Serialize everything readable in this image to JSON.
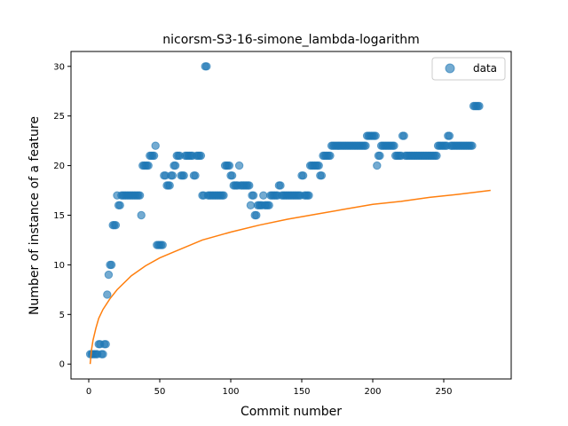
{
  "chart_data": {
    "type": "scatter",
    "title": "nicorsm-S3-16-simone_lambda-logarithm",
    "xlabel": "Commit number",
    "ylabel": "Number of instance of a feature",
    "xlim": [
      -12.5,
      297.5
    ],
    "ylim": [
      -1.5,
      31.5
    ],
    "xticks": [
      0,
      50,
      100,
      150,
      200,
      250
    ],
    "yticks": [
      0,
      5,
      10,
      15,
      20,
      25,
      30
    ],
    "grid": false,
    "legend": {
      "position": "top-right",
      "entries": [
        "data"
      ]
    },
    "colors": {
      "data": "#1f77b4",
      "fit": "#ff7f0e"
    },
    "series": [
      {
        "name": "data",
        "kind": "scatter",
        "points": [
          [
            1,
            1
          ],
          [
            2,
            1
          ],
          [
            3,
            1
          ],
          [
            4,
            1
          ],
          [
            5,
            1
          ],
          [
            6,
            1
          ],
          [
            7,
            2
          ],
          [
            8,
            2
          ],
          [
            9,
            1
          ],
          [
            10,
            1
          ],
          [
            11,
            2
          ],
          [
            12,
            2
          ],
          [
            13,
            7
          ],
          [
            14,
            9
          ],
          [
            15,
            10
          ],
          [
            16,
            10
          ],
          [
            17,
            14
          ],
          [
            18,
            14
          ],
          [
            19,
            14
          ],
          [
            20,
            17
          ],
          [
            21,
            16
          ],
          [
            22,
            16
          ],
          [
            23,
            17
          ],
          [
            24,
            17
          ],
          [
            25,
            17
          ],
          [
            26,
            17
          ],
          [
            27,
            17
          ],
          [
            28,
            17
          ],
          [
            29,
            17
          ],
          [
            30,
            17
          ],
          [
            31,
            17
          ],
          [
            32,
            17
          ],
          [
            33,
            17
          ],
          [
            34,
            17
          ],
          [
            35,
            17
          ],
          [
            36,
            17
          ],
          [
            37,
            15
          ],
          [
            38,
            20
          ],
          [
            39,
            20
          ],
          [
            40,
            20
          ],
          [
            41,
            20
          ],
          [
            42,
            20
          ],
          [
            43,
            21
          ],
          [
            44,
            21
          ],
          [
            45,
            21
          ],
          [
            46,
            21
          ],
          [
            47,
            22
          ],
          [
            48,
            12
          ],
          [
            49,
            12
          ],
          [
            50,
            12
          ],
          [
            51,
            12
          ],
          [
            52,
            12
          ],
          [
            53,
            19
          ],
          [
            54,
            19
          ],
          [
            55,
            18
          ],
          [
            56,
            18
          ],
          [
            57,
            18
          ],
          [
            58,
            19
          ],
          [
            59,
            19
          ],
          [
            60,
            20
          ],
          [
            61,
            20
          ],
          [
            62,
            21
          ],
          [
            63,
            21
          ],
          [
            64,
            21
          ],
          [
            65,
            19
          ],
          [
            66,
            19
          ],
          [
            67,
            19
          ],
          [
            68,
            21
          ],
          [
            69,
            21
          ],
          [
            70,
            21
          ],
          [
            71,
            21
          ],
          [
            72,
            21
          ],
          [
            73,
            21
          ],
          [
            74,
            19
          ],
          [
            75,
            19
          ],
          [
            76,
            21
          ],
          [
            77,
            21
          ],
          [
            78,
            21
          ],
          [
            79,
            21
          ],
          [
            80,
            17
          ],
          [
            81,
            17
          ],
          [
            82,
            30
          ],
          [
            83,
            30
          ],
          [
            84,
            17
          ],
          [
            85,
            17
          ],
          [
            86,
            17
          ],
          [
            87,
            17
          ],
          [
            88,
            17
          ],
          [
            89,
            17
          ],
          [
            90,
            17
          ],
          [
            91,
            17
          ],
          [
            92,
            17
          ],
          [
            93,
            17
          ],
          [
            94,
            17
          ],
          [
            95,
            17
          ],
          [
            96,
            20
          ],
          [
            97,
            20
          ],
          [
            98,
            20
          ],
          [
            99,
            20
          ],
          [
            100,
            19
          ],
          [
            101,
            19
          ],
          [
            102,
            18
          ],
          [
            103,
            18
          ],
          [
            104,
            18
          ],
          [
            105,
            18
          ],
          [
            106,
            20
          ],
          [
            107,
            18
          ],
          [
            108,
            18
          ],
          [
            109,
            18
          ],
          [
            110,
            18
          ],
          [
            111,
            18
          ],
          [
            112,
            18
          ],
          [
            113,
            18
          ],
          [
            114,
            16
          ],
          [
            115,
            17
          ],
          [
            116,
            17
          ],
          [
            117,
            15
          ],
          [
            118,
            15
          ],
          [
            119,
            16
          ],
          [
            120,
            16
          ],
          [
            121,
            16
          ],
          [
            122,
            16
          ],
          [
            123,
            17
          ],
          [
            124,
            16
          ],
          [
            125,
            16
          ],
          [
            126,
            16
          ],
          [
            127,
            16
          ],
          [
            128,
            17
          ],
          [
            129,
            17
          ],
          [
            130,
            17
          ],
          [
            131,
            17
          ],
          [
            132,
            17
          ],
          [
            133,
            17
          ],
          [
            134,
            18
          ],
          [
            135,
            18
          ],
          [
            136,
            17
          ],
          [
            137,
            17
          ],
          [
            138,
            17
          ],
          [
            139,
            17
          ],
          [
            140,
            17
          ],
          [
            141,
            17
          ],
          [
            142,
            17
          ],
          [
            143,
            17
          ],
          [
            144,
            17
          ],
          [
            145,
            17
          ],
          [
            146,
            17
          ],
          [
            147,
            17
          ],
          [
            148,
            17
          ],
          [
            149,
            17
          ],
          [
            150,
            19
          ],
          [
            151,
            19
          ],
          [
            152,
            17
          ],
          [
            153,
            17
          ],
          [
            154,
            17
          ],
          [
            155,
            17
          ],
          [
            156,
            20
          ],
          [
            157,
            20
          ],
          [
            158,
            20
          ],
          [
            159,
            20
          ],
          [
            160,
            20
          ],
          [
            161,
            20
          ],
          [
            162,
            20
          ],
          [
            163,
            19
          ],
          [
            164,
            19
          ],
          [
            165,
            21
          ],
          [
            166,
            21
          ],
          [
            167,
            21
          ],
          [
            168,
            21
          ],
          [
            169,
            21
          ],
          [
            170,
            21
          ],
          [
            171,
            22
          ],
          [
            172,
            22
          ],
          [
            173,
            22
          ],
          [
            174,
            22
          ],
          [
            175,
            22
          ],
          [
            176,
            22
          ],
          [
            177,
            22
          ],
          [
            178,
            22
          ],
          [
            179,
            22
          ],
          [
            180,
            22
          ],
          [
            181,
            22
          ],
          [
            182,
            22
          ],
          [
            183,
            22
          ],
          [
            184,
            22
          ],
          [
            185,
            22
          ],
          [
            186,
            22
          ],
          [
            187,
            22
          ],
          [
            188,
            22
          ],
          [
            189,
            22
          ],
          [
            190,
            22
          ],
          [
            191,
            22
          ],
          [
            192,
            22
          ],
          [
            193,
            22
          ],
          [
            194,
            22
          ],
          [
            195,
            22
          ],
          [
            196,
            23
          ],
          [
            197,
            23
          ],
          [
            198,
            23
          ],
          [
            199,
            23
          ],
          [
            200,
            23
          ],
          [
            201,
            23
          ],
          [
            202,
            23
          ],
          [
            203,
            20
          ],
          [
            204,
            21
          ],
          [
            205,
            21
          ],
          [
            206,
            22
          ],
          [
            207,
            22
          ],
          [
            208,
            22
          ],
          [
            209,
            22
          ],
          [
            210,
            22
          ],
          [
            211,
            22
          ],
          [
            212,
            22
          ],
          [
            213,
            22
          ],
          [
            214,
            22
          ],
          [
            215,
            22
          ],
          [
            216,
            21
          ],
          [
            217,
            21
          ],
          [
            218,
            21
          ],
          [
            219,
            21
          ],
          [
            220,
            21
          ],
          [
            221,
            23
          ],
          [
            222,
            23
          ],
          [
            223,
            21
          ],
          [
            224,
            21
          ],
          [
            225,
            21
          ],
          [
            226,
            21
          ],
          [
            227,
            21
          ],
          [
            228,
            21
          ],
          [
            229,
            21
          ],
          [
            230,
            21
          ],
          [
            231,
            21
          ],
          [
            232,
            21
          ],
          [
            233,
            21
          ],
          [
            234,
            21
          ],
          [
            235,
            21
          ],
          [
            236,
            21
          ],
          [
            237,
            21
          ],
          [
            238,
            21
          ],
          [
            239,
            21
          ],
          [
            240,
            21
          ],
          [
            241,
            21
          ],
          [
            242,
            21
          ],
          [
            243,
            21
          ],
          [
            244,
            21
          ],
          [
            245,
            21
          ],
          [
            246,
            22
          ],
          [
            247,
            22
          ],
          [
            248,
            22
          ],
          [
            249,
            22
          ],
          [
            250,
            22
          ],
          [
            251,
            22
          ],
          [
            252,
            22
          ],
          [
            253,
            23
          ],
          [
            254,
            23
          ],
          [
            255,
            22
          ],
          [
            256,
            22
          ],
          [
            257,
            22
          ],
          [
            258,
            22
          ],
          [
            259,
            22
          ],
          [
            260,
            22
          ],
          [
            261,
            22
          ],
          [
            262,
            22
          ],
          [
            263,
            22
          ],
          [
            264,
            22
          ],
          [
            265,
            22
          ],
          [
            266,
            22
          ],
          [
            267,
            22
          ],
          [
            268,
            22
          ],
          [
            269,
            22
          ],
          [
            270,
            22
          ],
          [
            271,
            26
          ],
          [
            272,
            26
          ],
          [
            273,
            26
          ],
          [
            274,
            26
          ],
          [
            275,
            26
          ]
        ]
      },
      {
        "kind": "line",
        "points": [
          [
            1,
            0.0
          ],
          [
            2,
            1.5
          ],
          [
            3,
            2.4
          ],
          [
            5,
            3.6
          ],
          [
            7,
            4.6
          ],
          [
            10,
            5.5
          ],
          [
            15,
            6.6
          ],
          [
            20,
            7.5
          ],
          [
            30,
            8.9
          ],
          [
            40,
            9.9
          ],
          [
            50,
            10.7
          ],
          [
            60,
            11.3
          ],
          [
            80,
            12.5
          ],
          [
            100,
            13.3
          ],
          [
            120,
            14.0
          ],
          [
            140,
            14.6
          ],
          [
            160,
            15.1
          ],
          [
            180,
            15.6
          ],
          [
            200,
            16.1
          ],
          [
            220,
            16.4
          ],
          [
            240,
            16.8
          ],
          [
            260,
            17.1
          ],
          [
            283,
            17.5
          ]
        ]
      }
    ]
  }
}
